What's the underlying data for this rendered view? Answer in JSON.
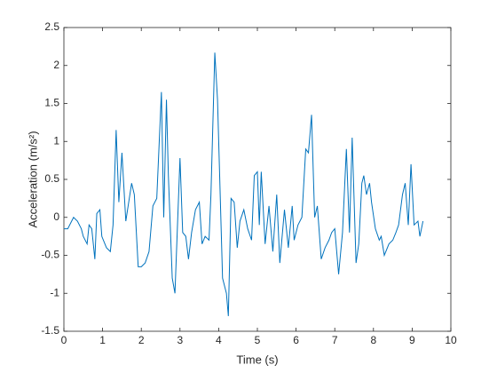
{
  "chart_data": {
    "type": "line",
    "x_label": "Time (s)",
    "y_label": "Acceleration (m/s²)",
    "color": "#0072bd",
    "xlim": [
      0,
      10
    ],
    "xticks": [
      0,
      1,
      2,
      3,
      4,
      5,
      6,
      7,
      8,
      9,
      10
    ],
    "ylim": [
      -1.5,
      2.5
    ],
    "yticks": [
      -1.5,
      -1,
      -0.5,
      0,
      0.5,
      1,
      1.5,
      2,
      2.5
    ],
    "x": [
      0,
      0.1,
      0.2,
      0.25,
      0.35,
      0.45,
      0.5,
      0.6,
      0.65,
      0.72,
      0.8,
      0.85,
      0.93,
      0.98,
      1.1,
      1.2,
      1.27,
      1.35,
      1.42,
      1.5,
      1.6,
      1.75,
      1.82,
      1.92,
      2.0,
      2.1,
      2.2,
      2.3,
      2.4,
      2.52,
      2.58,
      2.65,
      2.7,
      2.8,
      2.87,
      3.0,
      3.07,
      3.15,
      3.22,
      3.3,
      3.4,
      3.5,
      3.57,
      3.65,
      3.75,
      3.8,
      3.9,
      3.97,
      4.1,
      4.2,
      4.25,
      4.32,
      4.4,
      4.48,
      4.55,
      4.65,
      4.75,
      4.85,
      4.92,
      5.0,
      5.05,
      5.1,
      5.2,
      5.3,
      5.4,
      5.5,
      5.58,
      5.7,
      5.8,
      5.9,
      5.95,
      6.05,
      6.15,
      6.25,
      6.32,
      6.4,
      6.48,
      6.55,
      6.65,
      6.75,
      6.85,
      6.92,
      7.0,
      7.1,
      7.2,
      7.3,
      7.38,
      7.45,
      7.55,
      7.62,
      7.7,
      7.75,
      7.82,
      7.9,
      7.95,
      8.05,
      8.15,
      8.2,
      8.28,
      8.4,
      8.5,
      8.58,
      8.65,
      8.75,
      8.82,
      8.9,
      8.97,
      9.05,
      9.15,
      9.2,
      9.28
    ],
    "values": [
      -0.15,
      -0.15,
      -0.05,
      0.0,
      -0.05,
      -0.15,
      -0.25,
      -0.35,
      -0.1,
      -0.15,
      -0.55,
      0.05,
      0.1,
      -0.25,
      -0.4,
      -0.45,
      -0.1,
      1.15,
      0.2,
      0.85,
      -0.05,
      0.45,
      0.3,
      -0.65,
      -0.65,
      -0.6,
      -0.45,
      0.15,
      0.25,
      1.65,
      0.0,
      1.55,
      0.55,
      -0.8,
      -1.0,
      0.78,
      -0.2,
      -0.25,
      -0.55,
      -0.2,
      0.1,
      0.2,
      -0.35,
      -0.25,
      -0.3,
      0.3,
      2.17,
      1.55,
      -0.8,
      -1.0,
      -1.3,
      0.25,
      0.2,
      -0.4,
      -0.05,
      0.1,
      -0.15,
      -0.3,
      0.55,
      0.6,
      -0.1,
      0.6,
      -0.35,
      0.15,
      -0.45,
      0.3,
      -0.6,
      0.1,
      -0.4,
      0.15,
      -0.3,
      -0.1,
      0.0,
      0.9,
      0.85,
      1.35,
      0.0,
      0.15,
      -0.55,
      -0.4,
      -0.3,
      -0.2,
      -0.15,
      -0.75,
      -0.2,
      0.9,
      -0.2,
      1.05,
      -0.6,
      -0.35,
      0.45,
      0.55,
      0.3,
      0.45,
      0.2,
      -0.15,
      -0.3,
      -0.25,
      -0.5,
      -0.35,
      -0.3,
      -0.2,
      -0.1,
      0.3,
      0.45,
      -0.1,
      0.7,
      -0.1,
      -0.05,
      -0.25,
      -0.05
    ]
  }
}
